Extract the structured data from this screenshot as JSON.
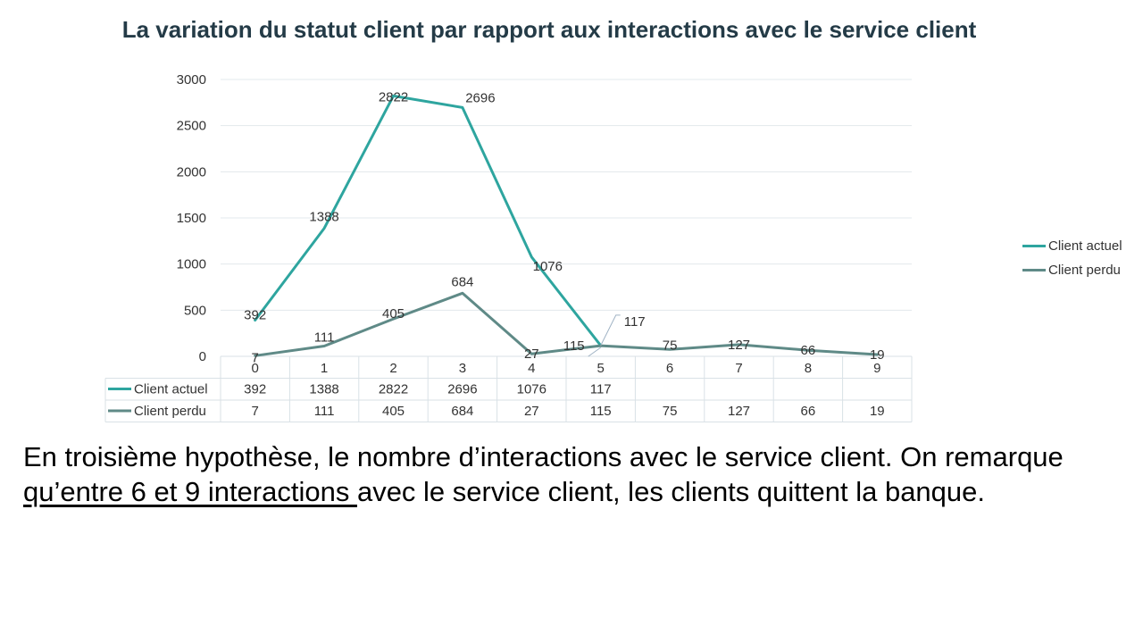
{
  "slide": {
    "title": "La variation du statut client par rapport aux interactions avec le service client",
    "body_before": "En troisième hypothèse, le nombre d’interactions avec le service client. On remarque ",
    "body_underlined": "qu’entre 6 et 9 interactions ",
    "body_after": "avec le service client, les clients quittent la banque."
  },
  "chart_data": {
    "type": "line",
    "title": "La variation du statut client par rapport aux interactions avec le service client",
    "categories": [
      "0",
      "1",
      "2",
      "3",
      "4",
      "5",
      "6",
      "7",
      "8",
      "9"
    ],
    "y_ticks": [
      "0",
      "500",
      "1000",
      "1500",
      "2000",
      "2500",
      "3000"
    ],
    "ylim": [
      0,
      3000
    ],
    "grid": true,
    "legend_position": "right",
    "data_table": true,
    "series": [
      {
        "name": "Client actuel",
        "color": "#2ea59f",
        "values": [
          392,
          1388,
          2822,
          2696,
          1076,
          117,
          null,
          null,
          null,
          null
        ]
      },
      {
        "name": "Client perdu",
        "color": "#5f8a87",
        "values": [
          7,
          111,
          405,
          684,
          27,
          115,
          75,
          127,
          66,
          19
        ]
      }
    ]
  }
}
